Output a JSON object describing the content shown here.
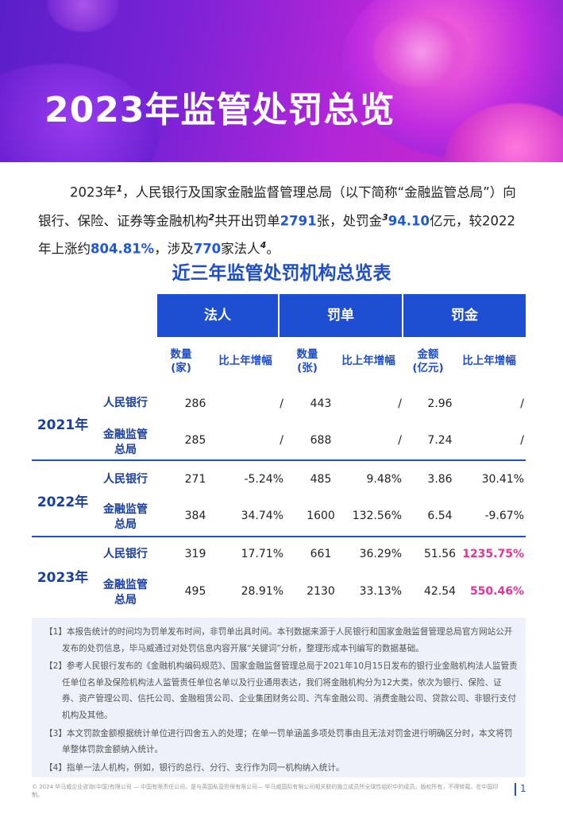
{
  "title": "2023年监管处罚总览",
  "intro": {
    "p1": "2023年",
    "sup1": "1",
    "p2": "，人民银行及国家金融监督管理总局（以下简称“金融监管总局”）向银行、保险、证券等金融机构",
    "sup2": "2",
    "p3": "共开出罚单",
    "v1": "2791",
    "p4": "张，处罚金",
    "sup3": "3",
    "v2": "94.10",
    "p5": "亿元，较2022年上涨约",
    "v3": "804.81%",
    "p6": "，涉及",
    "v4": "770",
    "p7": "家法人",
    "sup4": "4",
    "p8": "。"
  },
  "table": {
    "title": "近三年监管处罚机构总览表",
    "groups": [
      "法人",
      "罚单",
      "罚金"
    ],
    "subheaders": {
      "legal_count": "数量\n(家)",
      "legal_growth": "比上年增幅",
      "ticket_count": "数量\n(张)",
      "ticket_growth": "比上年增幅",
      "fine_amount": "金额\n(亿元)",
      "fine_growth": "比上年增幅"
    },
    "years": [
      "2021年",
      "2022年",
      "2023年"
    ],
    "institutions": [
      "人民银行",
      "金融监管\n总局"
    ],
    "rows": [
      [
        "286",
        "/",
        "443",
        "/",
        "2.96",
        "/"
      ],
      [
        "285",
        "/",
        "688",
        "/",
        "7.24",
        "/"
      ],
      [
        "271",
        "-5.24%",
        "485",
        "9.48%",
        "3.86",
        "30.41%"
      ],
      [
        "384",
        "34.74%",
        "1600",
        "132.56%",
        "6.54",
        "-9.67%"
      ],
      [
        "319",
        "17.71%",
        "661",
        "36.29%",
        "51.56",
        "1235.75%"
      ],
      [
        "495",
        "28.91%",
        "2130",
        "33.13%",
        "42.54",
        "550.46%"
      ]
    ],
    "highlight_color": "#e0359c"
  },
  "notes": [
    "【1】本报告统计的时间均为罚单发布时间，非罚单出具时间。本刊数据来源于人民银行和国家金融监督管理总局官方网站公开发布的处罚信息，毕马威通过对处罚信息内容开展“关键词”分析，整理形成本刊编写的数据基础。",
    "【2】参考人民银行发布的《金融机构编码规范》、国家金融监督管理总局于2021年10月15日发布的银行业金融机构法人监管责任单位名单及保险机构法人监管责任单位名单以及行业通用表达，我们将金融机构分为12大类，依次为银行、保险、证券、资产管理公司、信托公司、金融租赁公司、企业集团财务公司、汽车金融公司、消费金融公司、贷款公司、非银行支付机构及其他。",
    "【3】本文罚款金额根据统计单位进行四舍五入的处理；在单一罚单涵盖多项处罚事由且无法对罚金进行明确区分时，本文将罚单整体罚款金额纳入统计。",
    "【4】指单一法人机构，例如，银行的总行、分行、支行作为同一机构纳入统计。"
  ],
  "footer": "© 2024 毕马威企业咨询(中国)有限公司 — 中国有限责任公司，是与英国私营担保有限公司— 毕马威国际有限公司相关联的独立成员所全球性组织中的成员。版权所有，不得转载。在中国印制。",
  "page_number": "1",
  "colors": {
    "accent": "#1e4fd2",
    "title_blue": "#1f4ec8",
    "highlight": "#1f57d6"
  }
}
